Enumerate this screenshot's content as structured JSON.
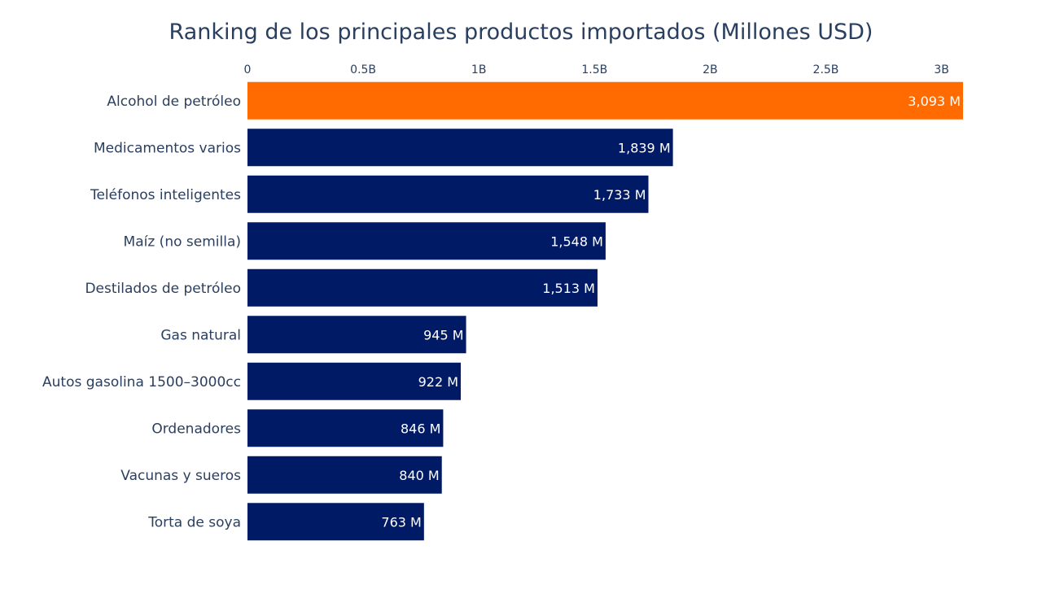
{
  "chart_data": {
    "type": "bar",
    "orientation": "horizontal",
    "title": "Ranking de los principales productos importados (Millones USD)",
    "xlabel": "",
    "ylabel": "",
    "categories": [
      "Alcohol de petróleo",
      "Medicamentos varios",
      "Teléfonos inteligentes",
      "Maíz (no semilla)",
      "Destilados de petróleo",
      "Gas natural",
      "Autos gasolina 1500–3000cc",
      "Ordenadores",
      "Vacunas y sueros",
      "Torta de soya"
    ],
    "values": [
      3093,
      1839,
      1733,
      1548,
      1513,
      945,
      922,
      846,
      840,
      763
    ],
    "value_labels": [
      "3,093 M",
      "1,839 M",
      "1,733 M",
      "1,548 M",
      "1,513 M",
      "945 M",
      "922 M",
      "846 M",
      "840 M",
      "763 M"
    ],
    "xlim": [
      0,
      3093
    ],
    "x_ticks": [
      0,
      500,
      1000,
      1500,
      2000,
      2500,
      3000
    ],
    "x_tick_labels": [
      "0",
      "0.5B",
      "1B",
      "1.5B",
      "2B",
      "2.5B",
      "3B"
    ],
    "x_axis_position": "top",
    "grid": false,
    "legend": "none",
    "colors": {
      "highlight": "#FF6B00",
      "default": "#001A66",
      "text": "#2A3F5F",
      "bar_label": "#ffffff"
    },
    "highlight_index": 0
  }
}
